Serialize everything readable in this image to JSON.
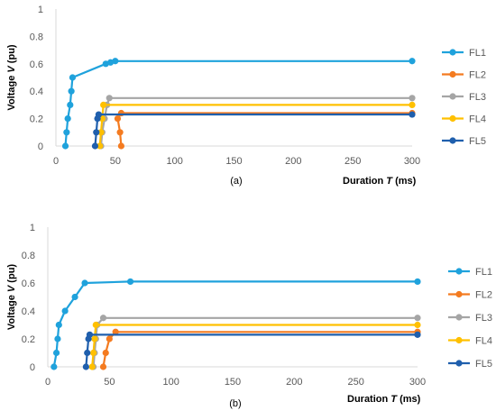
{
  "chart_data": [
    {
      "type": "line",
      "panel_label": "(a)",
      "xlabel": "Duration T (ms)",
      "ylabel": "Voltage V (pu)",
      "xlim": [
        0,
        300
      ],
      "ylim": [
        0,
        1
      ],
      "xticks": [
        0,
        50,
        100,
        150,
        200,
        250,
        300
      ],
      "yticks": [
        0,
        0.2,
        0.4,
        0.6,
        0.8,
        1
      ],
      "grid": false,
      "legend_position": "right",
      "series": [
        {
          "name": "FL1",
          "color": "#1FA2DC",
          "points": [
            [
              8,
              0
            ],
            [
              9,
              0.1
            ],
            [
              10,
              0.2
            ],
            [
              12,
              0.3
            ],
            [
              13,
              0.4
            ],
            [
              14,
              0.5
            ],
            [
              42,
              0.6
            ],
            [
              46,
              0.61
            ],
            [
              50,
              0.62
            ],
            [
              300,
              0.62
            ]
          ]
        },
        {
          "name": "FL2",
          "color": "#F47B20",
          "points": [
            [
              55,
              0
            ],
            [
              54,
              0.1
            ],
            [
              52,
              0.2
            ],
            [
              55,
              0.24
            ],
            [
              300,
              0.24
            ]
          ]
        },
        {
          "name": "FL3",
          "color": "#A5A5A5",
          "points": [
            [
              38,
              0
            ],
            [
              39,
              0.1
            ],
            [
              41,
              0.2
            ],
            [
              43,
              0.3
            ],
            [
              45,
              0.35
            ],
            [
              300,
              0.35
            ]
          ]
        },
        {
          "name": "FL4",
          "color": "#FFC000",
          "points": [
            [
              37,
              0
            ],
            [
              38,
              0.1
            ],
            [
              39,
              0.2
            ],
            [
              40,
              0.3
            ],
            [
              300,
              0.3
            ]
          ]
        },
        {
          "name": "FL5",
          "color": "#1F5FAD",
          "points": [
            [
              33,
              0
            ],
            [
              34,
              0.1
            ],
            [
              35,
              0.2
            ],
            [
              36,
              0.23
            ],
            [
              300,
              0.23
            ]
          ]
        }
      ]
    },
    {
      "type": "line",
      "panel_label": "(b)",
      "xlabel": "Duration T (ms)",
      "ylabel": "Voltage V (pu)",
      "xlim": [
        0,
        300
      ],
      "ylim": [
        0,
        1
      ],
      "xticks": [
        0,
        50,
        100,
        150,
        200,
        250,
        300
      ],
      "yticks": [
        0,
        0.2,
        0.4,
        0.6,
        0.8,
        1
      ],
      "grid": false,
      "legend_position": "right",
      "series": [
        {
          "name": "FL1",
          "color": "#1FA2DC",
          "points": [
            [
              5,
              0
            ],
            [
              7,
              0.1
            ],
            [
              8,
              0.2
            ],
            [
              9,
              0.3
            ],
            [
              14,
              0.4
            ],
            [
              22,
              0.5
            ],
            [
              30,
              0.6
            ],
            [
              67,
              0.61
            ],
            [
              300,
              0.61
            ]
          ]
        },
        {
          "name": "FL2",
          "color": "#F47B20",
          "points": [
            [
              45,
              0
            ],
            [
              47,
              0.1
            ],
            [
              50,
              0.2
            ],
            [
              55,
              0.25
            ],
            [
              300,
              0.25
            ]
          ]
        },
        {
          "name": "FL3",
          "color": "#A5A5A5",
          "points": [
            [
              37,
              0
            ],
            [
              38,
              0.1
            ],
            [
              39,
              0.2
            ],
            [
              40,
              0.3
            ],
            [
              45,
              0.35
            ],
            [
              300,
              0.35
            ]
          ]
        },
        {
          "name": "FL4",
          "color": "#FFC000",
          "points": [
            [
              36,
              0
            ],
            [
              37,
              0.1
            ],
            [
              38,
              0.2
            ],
            [
              39,
              0.3
            ],
            [
              300,
              0.3
            ]
          ]
        },
        {
          "name": "FL5",
          "color": "#1F5FAD",
          "points": [
            [
              31,
              0
            ],
            [
              32,
              0.1
            ],
            [
              33,
              0.2
            ],
            [
              34,
              0.23
            ],
            [
              300,
              0.23
            ]
          ]
        }
      ]
    }
  ]
}
